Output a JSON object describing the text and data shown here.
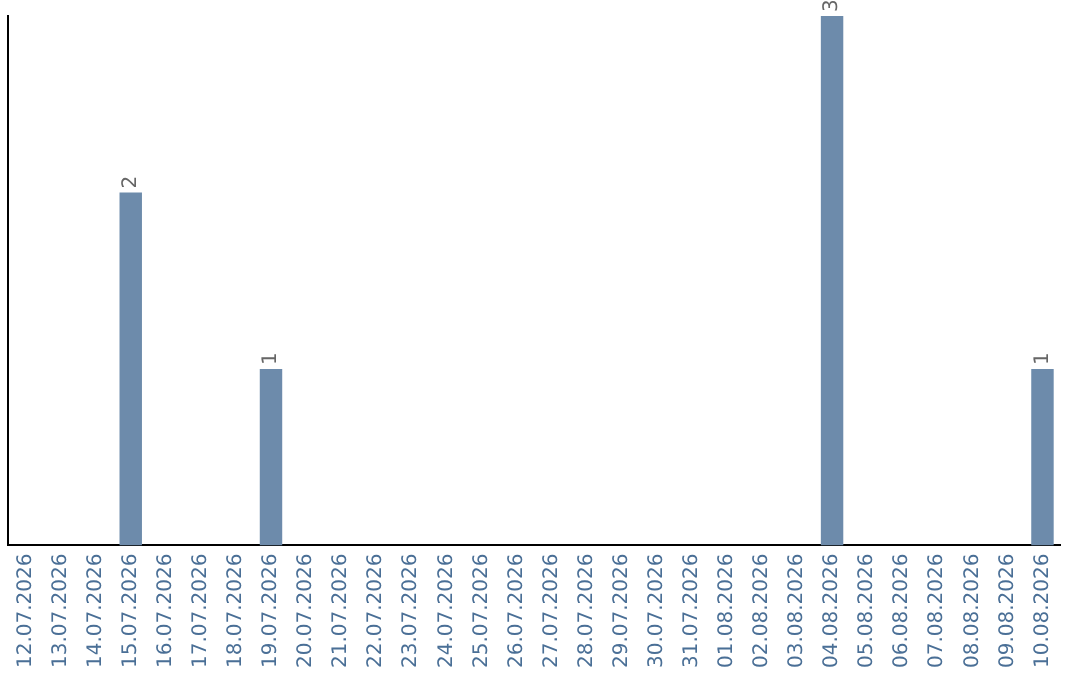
{
  "chart_data": {
    "type": "bar",
    "categories": [
      "12.07.2026",
      "13.07.2026",
      "14.07.2026",
      "15.07.2026",
      "16.07.2026",
      "17.07.2026",
      "18.07.2026",
      "19.07.2026",
      "20.07.2026",
      "21.07.2026",
      "22.07.2026",
      "23.07.2026",
      "24.07.2026",
      "25.07.2026",
      "26.07.2026",
      "27.07.2026",
      "28.07.2026",
      "29.07.2026",
      "30.07.2026",
      "31.07.2026",
      "01.08.2026",
      "02.08.2026",
      "03.08.2026",
      "04.08.2026",
      "05.08.2026",
      "06.08.2026",
      "07.08.2026",
      "08.08.2026",
      "09.08.2026",
      "10.08.2026"
    ],
    "values": [
      0,
      0,
      0,
      2,
      0,
      0,
      0,
      1,
      0,
      0,
      0,
      0,
      0,
      0,
      0,
      0,
      0,
      0,
      0,
      0,
      0,
      0,
      0,
      3,
      0,
      0,
      0,
      0,
      0,
      1
    ],
    "value_labels": [
      null,
      null,
      null,
      "2",
      null,
      null,
      null,
      "1",
      null,
      null,
      null,
      null,
      null,
      null,
      null,
      null,
      null,
      null,
      null,
      null,
      null,
      null,
      null,
      "3",
      null,
      null,
      null,
      null,
      null,
      "1"
    ],
    "color": "#6d8bab",
    "grid": false,
    "legend": false,
    "tick_labels": "x"
  }
}
